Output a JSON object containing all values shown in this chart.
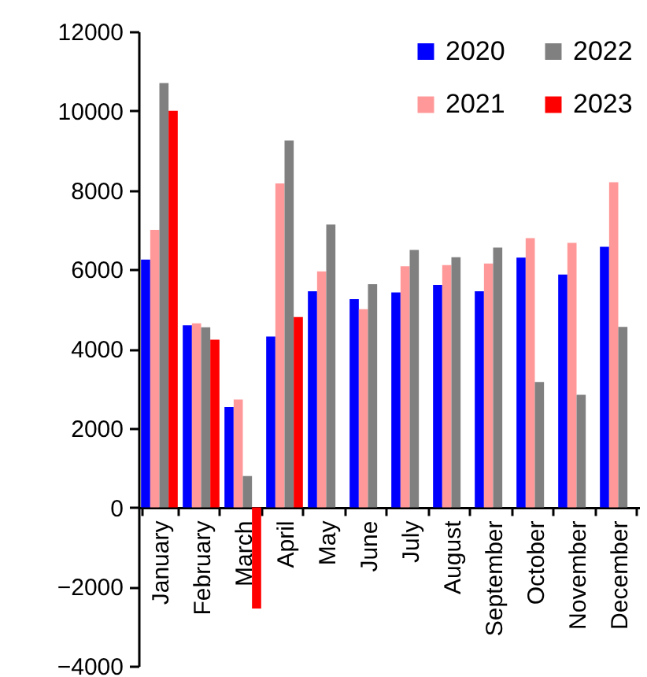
{
  "chart_data": {
    "type": "bar",
    "categories": [
      "January",
      "February",
      "March",
      "April",
      "May",
      "June",
      "July",
      "August",
      "September",
      "October",
      "November",
      "December"
    ],
    "series": [
      {
        "name": "2020",
        "color": "#0000ff",
        "values": [
          6250,
          4590,
          2530,
          4310,
          5450,
          5250,
          5420,
          5610,
          5450,
          6300,
          5870,
          6570
        ]
      },
      {
        "name": "2021",
        "color": "#ff9999",
        "values": [
          7000,
          4640,
          2720,
          8170,
          5950,
          5000,
          6080,
          6110,
          6150,
          6790,
          6670,
          8200
        ]
      },
      {
        "name": "2022",
        "color": "#808080",
        "values": [
          10700,
          4540,
          790,
          9250,
          7130,
          5630,
          6490,
          6310,
          6550,
          3160,
          2840,
          4550
        ]
      },
      {
        "name": "2023",
        "color": "#ff0000",
        "values": [
          10000,
          4230,
          -2550,
          4800,
          null,
          null,
          null,
          null,
          null,
          null,
          null,
          null
        ]
      }
    ],
    "ylim": [
      -4000,
      12000
    ],
    "yticks": [
      -4000,
      -2000,
      0,
      2000,
      4000,
      6000,
      8000,
      10000,
      12000
    ],
    "grid": false,
    "legend": "top right"
  }
}
